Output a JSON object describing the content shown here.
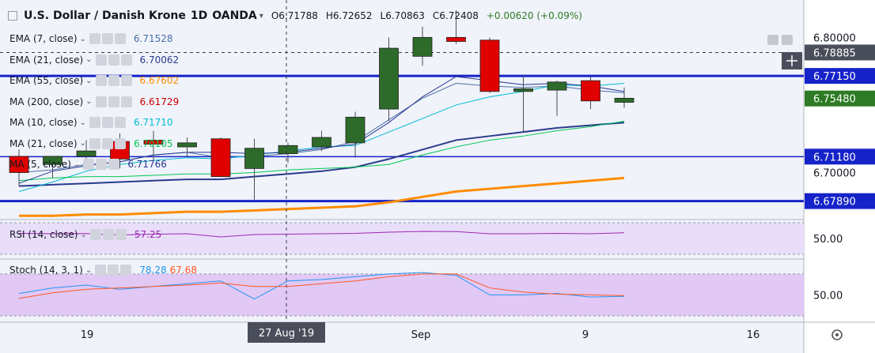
{
  "header": {
    "symbol": "U.S. Dollar / Danish Krone",
    "interval": "1D",
    "exchange": "OANDA",
    "ohlc": {
      "o": "O6.71788",
      "h": "H6.72652",
      "l": "L6.70863",
      "c": "C6.72408",
      "chg": "+0.00620 (+0.09%)"
    }
  },
  "indicators": [
    {
      "label": "EMA (7, close)",
      "value": "6.71528",
      "color": "#4a6fa5"
    },
    {
      "label": "EMA (21, close)",
      "value": "6.70062",
      "color": "#2a3a8c"
    },
    {
      "label": "EMA (55, close)",
      "value": "6.67602",
      "color": "#ff8c00"
    },
    {
      "label": "MA (200, close)",
      "value": "6.61729",
      "color": "#cc0000"
    },
    {
      "label": "MA (10, close)",
      "value": "6.71710",
      "color": "#00bcd4"
    },
    {
      "label": "MA (21, close)",
      "value": "6.70105",
      "color": "#00c853"
    },
    {
      "label": "MA (5, close)",
      "value": "6.71766",
      "color": "#283593"
    }
  ],
  "oscillators": [
    {
      "label": "RSI (14, close)",
      "values": [
        "57.25"
      ],
      "colors": [
        "#9c27b0"
      ]
    },
    {
      "label": "Stoch (14, 3, 1)",
      "values": [
        "78.28",
        "67.68"
      ],
      "colors": [
        "#2196f3",
        "#ff5722"
      ]
    }
  ],
  "price_axis": {
    "ticks": [
      "6.80000",
      "6.70000"
    ],
    "badges": [
      {
        "text": "6.78885",
        "bg": "#4a4e5a"
      },
      {
        "text": "6.77150",
        "bg": "#1523c9"
      },
      {
        "text": "6.75480",
        "bg": "#2d7b24"
      },
      {
        "text": "6.71180",
        "bg": "#1523c9"
      },
      {
        "text": "6.67890",
        "bg": "#1523c9"
      }
    ]
  },
  "rsi_axis": {
    "tick": "50.00"
  },
  "stoch_axis": {
    "tick": "50.00"
  },
  "time_axis": {
    "ticks": [
      "19",
      "Sep",
      "9",
      "16"
    ],
    "crosshair_label": "27 Aug '19"
  },
  "chart_data": {
    "type": "candlestick",
    "ylim": [
      6.667,
      6.823
    ],
    "candles": [
      {
        "o": 6.712,
        "h": 6.717,
        "l": 6.69,
        "c": 6.7
      },
      {
        "o": 6.706,
        "h": 6.712,
        "l": 6.696,
        "c": 6.712
      },
      {
        "o": 6.712,
        "h": 6.724,
        "l": 6.702,
        "c": 6.716
      },
      {
        "o": 6.723,
        "h": 6.729,
        "l": 6.703,
        "c": 6.71
      },
      {
        "o": 6.724,
        "h": 6.731,
        "l": 6.709,
        "c": 6.721
      },
      {
        "o": 6.719,
        "h": 6.726,
        "l": 6.712,
        "c": 6.722
      },
      {
        "o": 6.725,
        "h": 6.726,
        "l": 6.697,
        "c": 6.697
      },
      {
        "o": 6.703,
        "h": 6.725,
        "l": 6.68,
        "c": 6.718
      },
      {
        "o": 6.714,
        "h": 6.722,
        "l": 6.707,
        "c": 6.72
      },
      {
        "o": 6.719,
        "h": 6.731,
        "l": 6.716,
        "c": 6.726
      },
      {
        "o": 6.722,
        "h": 6.745,
        "l": 6.711,
        "c": 6.741
      },
      {
        "o": 6.747,
        "h": 6.8,
        "l": 6.738,
        "c": 6.792
      },
      {
        "o": 6.786,
        "h": 6.808,
        "l": 6.779,
        "c": 6.8
      },
      {
        "o": 6.8,
        "h": 6.82,
        "l": 6.795,
        "c": 6.797
      },
      {
        "o": 6.798,
        "h": 6.8,
        "l": 6.759,
        "c": 6.76
      },
      {
        "o": 6.76,
        "h": 6.772,
        "l": 6.73,
        "c": 6.762
      },
      {
        "o": 6.761,
        "h": 6.768,
        "l": 6.742,
        "c": 6.767
      },
      {
        "o": 6.768,
        "h": 6.771,
        "l": 6.747,
        "c": 6.753
      },
      {
        "o": 6.752,
        "h": 6.763,
        "l": 6.748,
        "c": 6.755
      }
    ],
    "overlays": {
      "ema7": [
        6.7,
        6.702,
        6.706,
        6.708,
        6.713,
        6.715,
        6.711,
        6.712,
        6.714,
        6.717,
        6.723,
        6.739,
        6.755,
        6.766,
        6.764,
        6.763,
        6.764,
        6.761,
        6.759
      ],
      "ema21": [
        6.69,
        6.691,
        6.692,
        6.693,
        6.694,
        6.695,
        6.695,
        6.697,
        6.699,
        6.701,
        6.704,
        6.71,
        6.717,
        6.724,
        6.727,
        6.73,
        6.733,
        6.735,
        6.737
      ],
      "ema55": [
        6.668,
        6.668,
        6.669,
        6.669,
        6.67,
        6.671,
        6.671,
        6.672,
        6.673,
        6.674,
        6.675,
        6.678,
        6.682,
        6.686,
        6.688,
        6.69,
        6.692,
        6.694,
        6.696
      ],
      "ma10": [
        6.686,
        6.693,
        6.701,
        6.706,
        6.709,
        6.711,
        6.71,
        6.713,
        6.716,
        6.719,
        6.72,
        6.73,
        6.74,
        6.75,
        6.756,
        6.76,
        6.765,
        6.764,
        6.766
      ],
      "ma21": [
        6.694,
        6.696,
        6.697,
        6.697,
        6.698,
        6.699,
        6.699,
        6.7,
        6.702,
        6.703,
        6.704,
        6.706,
        6.713,
        6.719,
        6.724,
        6.727,
        6.731,
        6.734,
        6.738
      ],
      "ma5": [
        6.692,
        6.701,
        6.705,
        6.708,
        6.713,
        6.715,
        6.715,
        6.714,
        6.715,
        6.718,
        6.721,
        6.737,
        6.756,
        6.771,
        6.768,
        6.765,
        6.766,
        6.764,
        6.76
      ]
    },
    "hlines": [
      6.7715,
      6.7118,
      6.6789
    ],
    "dashed_hline": 6.78885,
    "rsi": [
      56.5,
      56.0,
      56.3,
      54.5,
      55.5,
      56.0,
      52.0,
      55.0,
      55.5,
      56.0,
      56.5,
      58.0,
      59.0,
      58.8,
      56.0,
      56.0,
      56.5,
      56.0,
      57.25
    ],
    "rsi_ylim": [
      30,
      70
    ],
    "stoch_k": [
      52,
      60,
      64,
      58,
      62,
      66,
      70,
      44,
      70,
      72,
      76,
      80,
      82,
      78,
      50,
      50,
      52,
      47,
      48
    ],
    "stoch_d": [
      45,
      53,
      58,
      60,
      62,
      64,
      67,
      62,
      62,
      66,
      70,
      76,
      80,
      80,
      60,
      54,
      51,
      50,
      49
    ],
    "stoch_ylim": [
      20,
      90
    ]
  }
}
